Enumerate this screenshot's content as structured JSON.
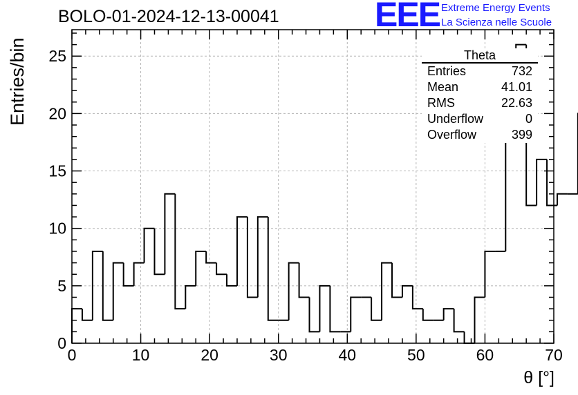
{
  "title": "BOLO-01-2024-12-13-00041",
  "logo": {
    "mark": "EEE",
    "line1": "Extreme Energy Events",
    "line2": "La Scienza nelle Scuole",
    "color": "#1a1aff"
  },
  "stats_box": {
    "name": "Theta",
    "rows": [
      {
        "label": "Entries",
        "value": "732"
      },
      {
        "label": "Mean",
        "value": "41.01"
      },
      {
        "label": "RMS",
        "value": "22.63"
      },
      {
        "label": "Underflow",
        "value": "0"
      },
      {
        "label": "Overflow",
        "value": "399"
      }
    ]
  },
  "chart_data": {
    "type": "bar",
    "style": "step-histogram",
    "xlabel": "θ [°]",
    "ylabel": "Entries/bin",
    "xlim": [
      0,
      70
    ],
    "ylim": [
      0,
      27.3
    ],
    "bin_width": 1.5,
    "x_ticks": [
      0,
      10,
      20,
      30,
      40,
      50,
      60,
      70
    ],
    "y_ticks": [
      0,
      5,
      10,
      15,
      20,
      25
    ],
    "grid": true,
    "line_color": "#000000",
    "values": [
      3,
      2,
      8,
      2,
      7,
      5,
      7,
      10,
      6,
      13,
      3,
      5,
      8,
      7,
      6,
      5,
      11,
      4,
      11,
      2,
      2,
      7,
      4,
      1,
      5,
      1,
      1,
      4,
      4,
      2,
      7,
      4,
      5,
      3,
      2,
      2,
      3,
      1,
      0,
      4,
      8,
      8,
      18,
      26,
      12,
      16,
      12,
      13,
      13,
      20
    ]
  }
}
